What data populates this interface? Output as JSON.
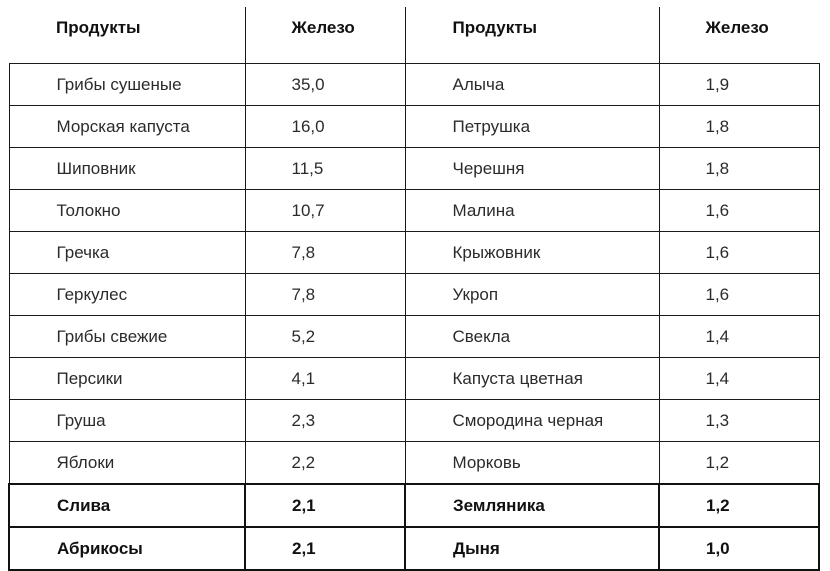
{
  "headers": [
    "Продукты",
    "Железо",
    "Продукты",
    "Железо"
  ],
  "rows": [
    [
      "Грибы сушеные",
      "35,0",
      "Алыча",
      "1,9"
    ],
    [
      "Морская капуста",
      "16,0",
      "Петрушка",
      "1,8"
    ],
    [
      "Шиповник",
      "11,5",
      "Черешня",
      "1,8"
    ],
    [
      "Толокно",
      "10,7",
      "Малина",
      "1,6"
    ],
    [
      "Гречка",
      "7,8",
      "Крыжовник",
      "1,6"
    ],
    [
      "Геркулес",
      "7,8",
      "Укроп",
      "1,6"
    ],
    [
      "Грибы свежие",
      "5,2",
      "Свекла",
      "1,4"
    ],
    [
      "Персики",
      "4,1",
      "Капуста цветная",
      "1,4"
    ],
    [
      "Груша",
      "2,3",
      "Смородина черная",
      "1,3"
    ],
    [
      "Яблоки",
      "2,2",
      "Морковь",
      "1,2"
    ],
    [
      "Слива",
      "2,1",
      "Земляника",
      "1,2"
    ],
    [
      "Абрикосы",
      "2,1",
      "Дыня",
      "1,0"
    ]
  ],
  "bold_rows": [
    10,
    11
  ]
}
